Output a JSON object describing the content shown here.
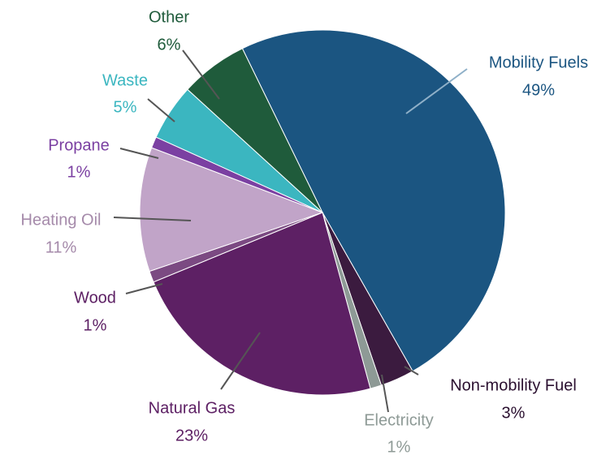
{
  "chart_data": {
    "type": "pie",
    "categories": [
      "Mobility Fuels",
      "Non-mobility Fuel",
      "Electricity",
      "Natural Gas",
      "Wood",
      "Heating Oil",
      "Propane",
      "Waste",
      "Other"
    ],
    "values": [
      49,
      3,
      1,
      23,
      1,
      11,
      1,
      5,
      6
    ],
    "value_labels": [
      "49%",
      "3%",
      "1%",
      "23%",
      "1%",
      "11%",
      "1%",
      "5%",
      "6%"
    ],
    "colors": [
      "#1b5581",
      "#3b1b3f",
      "#8e9a96",
      "#5d2064",
      "#7b4a82",
      "#c1a4c8",
      "#7b40a2",
      "#3bb6c0",
      "#1f5b3b"
    ]
  }
}
